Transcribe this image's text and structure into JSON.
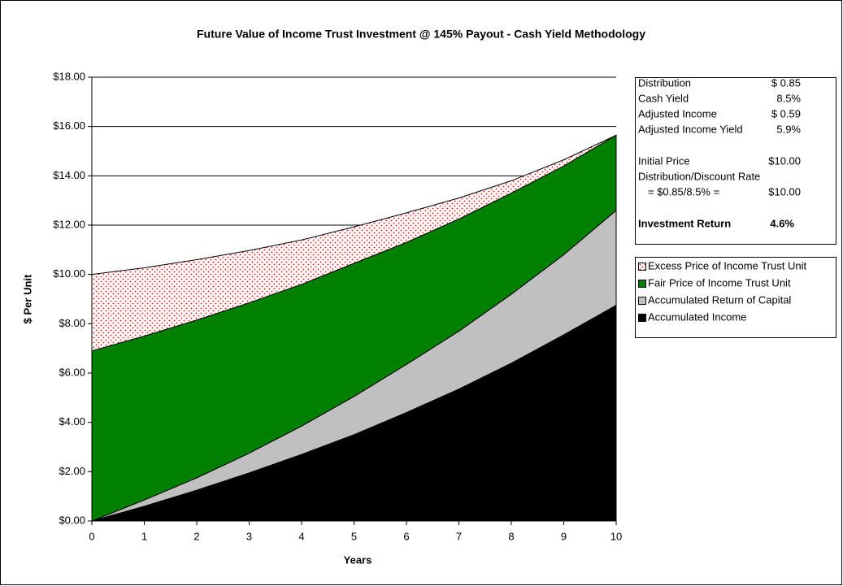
{
  "chart_data": {
    "type": "stacked_area",
    "title": "Future Value of Income Trust Investment @ 145% Payout - Cash Yield Methodology",
    "x_label": "Years",
    "y_label": "$ Per Unit",
    "x": [
      0,
      1,
      2,
      3,
      4,
      5,
      6,
      7,
      8,
      9,
      10
    ],
    "xlim": [
      0,
      10
    ],
    "xticks": [
      0,
      1,
      2,
      3,
      4,
      5,
      6,
      7,
      8,
      9,
      10
    ],
    "ylim": [
      0,
      18
    ],
    "yticks": [
      {
        "value": 0,
        "label": "$0.00"
      },
      {
        "value": 2,
        "label": "$2.00"
      },
      {
        "value": 4,
        "label": "$4.00"
      },
      {
        "value": 6,
        "label": "$6.00"
      },
      {
        "value": 8,
        "label": "$8.00"
      },
      {
        "value": 10,
        "label": "$10.00"
      },
      {
        "value": 12,
        "label": "$12.00"
      },
      {
        "value": 14,
        "label": "$14.00"
      },
      {
        "value": 16,
        "label": "$16.00"
      },
      {
        "value": 18,
        "label": "$18.00"
      }
    ],
    "grid": true,
    "series": [
      {
        "name": "Accumulated Income",
        "color": "#000000",
        "values": [
          0,
          0.6,
          1.25,
          1.95,
          2.7,
          3.5,
          4.4,
          5.35,
          6.4,
          7.55,
          8.75
        ]
      },
      {
        "name": "Accumulated Return of Capital",
        "color": "#c0c0c0",
        "values": [
          0,
          0.25,
          0.5,
          0.8,
          1.15,
          1.55,
          1.95,
          2.35,
          2.8,
          3.25,
          3.85
        ]
      },
      {
        "name": "Fair Price of Income Trust Unit",
        "color": "#008000",
        "values": [
          6.9,
          6.65,
          6.4,
          6.1,
          5.75,
          5.4,
          4.95,
          4.55,
          4.1,
          3.6,
          3.05
        ]
      },
      {
        "name": "Excess Price of Income Trust Unit",
        "color": "#ff0000",
        "pattern": "dots",
        "values": [
          3.1,
          2.77,
          2.45,
          2.12,
          1.8,
          1.48,
          1.2,
          0.85,
          0.5,
          0.25,
          0
        ]
      }
    ],
    "info_box": [
      {
        "label": "Distribution",
        "value": "$ 0.85"
      },
      {
        "label": "Cash Yield",
        "value": "8.5%"
      },
      {
        "label": "Adjusted Income",
        "value": "$ 0.59"
      },
      {
        "label": "Adjusted Income Yield",
        "value": "5.9%"
      },
      {
        "label": "Initial Price",
        "value": "$10.00"
      },
      {
        "label": "Distribution/Discount Rate"
      },
      {
        "label": "= $0.85/8.5% =",
        "value": "$10.00"
      },
      {
        "label": "Investment Return",
        "value": "4.6%",
        "bold": true
      }
    ]
  }
}
